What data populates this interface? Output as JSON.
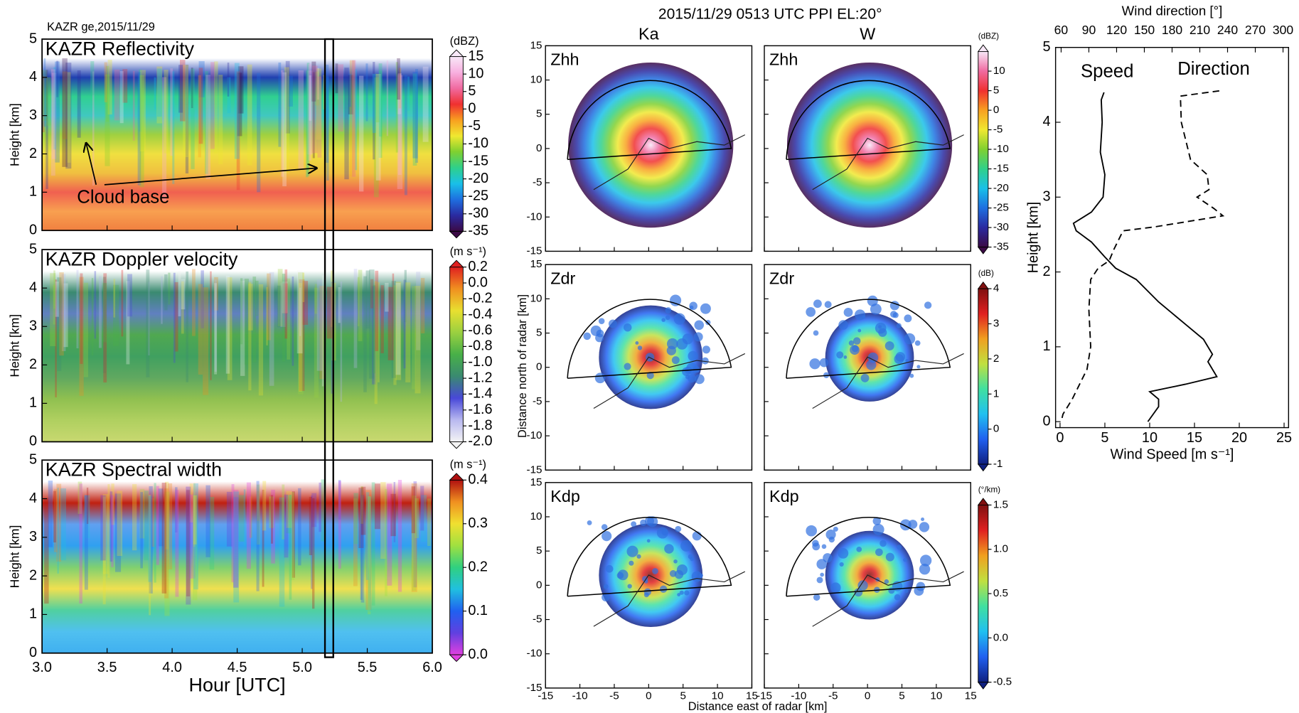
{
  "chart_data": [
    {
      "type": "heatmap",
      "header": "KAZR ge,2015/11/29",
      "title": "KAZR Reflectivity",
      "ylabel": "Height [km]",
      "xlim": [
        3,
        6
      ],
      "xticks": [
        {
          "value": 3,
          "label": "3.0"
        },
        3.5,
        {
          "value": 4,
          "label": "4.0"
        },
        4.5,
        {
          "value": 5,
          "label": "5.0"
        },
        5.5,
        {
          "value": 6,
          "label": "6.0"
        }
      ],
      "ylim": [
        0,
        5
      ],
      "yticks": [
        0,
        1,
        2,
        3,
        4,
        5
      ],
      "annotation": "Cloud base",
      "colorbar": {
        "label": "(dBZ)",
        "lim": [
          -35,
          15
        ],
        "ticks": [
          15,
          10,
          5,
          0,
          -5,
          -10,
          -15,
          -20,
          -25,
          -30,
          -35
        ],
        "colors": [
          "#3b0a45",
          "#2a2aa0",
          "#1e6fe0",
          "#19c0e8",
          "#2fd08a",
          "#7fd030",
          "#f0e830",
          "#f8a020",
          "#f03030",
          "#f06aa0",
          "#f8b0e0",
          "#f8e8f8"
        ]
      }
    },
    {
      "type": "heatmap",
      "title": "KAZR Doppler velocity",
      "ylabel": "Height [km]",
      "xlim": [
        3,
        6
      ],
      "xticks": [
        {
          "value": 3,
          "label": "3.0"
        },
        3.5,
        {
          "value": 4,
          "label": "4.0"
        },
        4.5,
        {
          "value": 5,
          "label": "5.0"
        },
        5.5,
        {
          "value": 6,
          "label": "6.0"
        }
      ],
      "ylim": [
        0,
        5
      ],
      "yticks": [
        0,
        1,
        2,
        3,
        4,
        5
      ],
      "colorbar": {
        "label": "(m s⁻¹)",
        "lim": [
          -2,
          0.2
        ],
        "ticks": [
          0.2,
          {
            "value": 0,
            "label": "0.0"
          },
          -0.2,
          -0.4,
          -0.6,
          -0.8,
          {
            "value": -1,
            "label": "-1.0"
          },
          -1.2,
          -1.4,
          -1.6,
          -1.8,
          {
            "value": -2,
            "label": "-2.0"
          }
        ],
        "colors": [
          "#f4f4f4",
          "#b8b8f0",
          "#4848d8",
          "#3a8a70",
          "#48b048",
          "#9ad040",
          "#e8e030",
          "#f09020",
          "#e02020"
        ]
      }
    },
    {
      "type": "heatmap",
      "title": "KAZR Spectral width",
      "ylabel": "Height [km]",
      "xlabel": "Hour [UTC]",
      "xlim": [
        3,
        6
      ],
      "xticks": [
        {
          "value": 3,
          "label": "3.0"
        },
        3.5,
        {
          "value": 4,
          "label": "4.0"
        },
        4.5,
        {
          "value": 5,
          "label": "5.0"
        },
        5.5,
        {
          "value": 6,
          "label": "6.0"
        }
      ],
      "ylim": [
        0,
        5
      ],
      "yticks": [
        0,
        1,
        2,
        3,
        4,
        5
      ],
      "colorbar": {
        "label": "(m s⁻¹)",
        "lim": [
          0,
          0.4
        ],
        "ticks": [
          0.4,
          0.3,
          0.2,
          0.1,
          {
            "value": 0,
            "label": "0.0"
          }
        ],
        "colors": [
          "#e040e0",
          "#6040e0",
          "#2060f0",
          "#20c0e0",
          "#30d080",
          "#a0e040",
          "#f0e030",
          "#f09020",
          "#b01010"
        ]
      }
    },
    {
      "type": "ppi",
      "title": "2015/11/29 0513 UTC  PPI EL:20°",
      "columns": [
        "Ka",
        "W"
      ],
      "xlabel": "Distance east of radar [km]",
      "ylabel": "Distance north of radar [km]",
      "xlim": [
        -15,
        15
      ],
      "ylim": [
        -15,
        15
      ],
      "xticks": [
        -15,
        -10,
        -5,
        0,
        5,
        10,
        15
      ],
      "yticks": [
        15,
        10,
        5,
        0,
        -5,
        -10,
        -15
      ],
      "rows": [
        {
          "label": "Zhh",
          "colorbar": {
            "label": "(dBZ)",
            "lim": [
              -35,
              15
            ],
            "ticks": [
              10,
              5,
              0,
              -5,
              -10,
              -15,
              -20,
              -25,
              -30,
              -35
            ],
            "colors": [
              "#3b0a45",
              "#2a2aa0",
              "#1e6fe0",
              "#19c0e8",
              "#2fd08a",
              "#7fd030",
              "#f0e830",
              "#f8a020",
              "#f03030",
              "#f06aa0",
              "#f8e8f8"
            ]
          }
        },
        {
          "label": "Zdr",
          "colorbar": {
            "label": "(dB)",
            "lim": [
              -1,
              4
            ],
            "ticks": [
              4,
              3,
              2,
              1,
              0,
              -1
            ],
            "colors": [
              "#102080",
              "#2060f0",
              "#20c0f0",
              "#40e0a0",
              "#c0e040",
              "#f0a020",
              "#e02020",
              "#801010"
            ]
          }
        },
        {
          "label": "Kdp",
          "colorbar": {
            "label": "(°/km)",
            "lim": [
              -0.5,
              1.5
            ],
            "ticks": [
              1.5,
              {
                "value": 1,
                "label": "1.0"
              },
              0.5,
              {
                "value": 0,
                "label": "0.0"
              },
              -0.5
            ],
            "colors": [
              "#102080",
              "#2060f0",
              "#20c0f0",
              "#40e0a0",
              "#c0e040",
              "#f0a020",
              "#e02020",
              "#801010"
            ]
          }
        }
      ]
    },
    {
      "type": "line",
      "xlabel": "Wind Speed [m s⁻¹]",
      "x2label": "Wind direction [°]",
      "ylabel": "Height [km]",
      "xlim": [
        -0.5,
        25.5
      ],
      "xticks": [
        0,
        5,
        10,
        15,
        20,
        25
      ],
      "x2lim": [
        54,
        306
      ],
      "x2ticks": [
        60,
        90,
        120,
        150,
        180,
        210,
        240,
        270,
        300
      ],
      "ylim": [
        -0.08,
        5
      ],
      "yticks": [
        0,
        1,
        2,
        3,
        4,
        5
      ],
      "series": [
        {
          "name": "Speed",
          "color": "#000000",
          "dashed": false,
          "x": [
            4.9,
            4.6,
            4.7,
            4.5,
            5.0,
            4.8,
            3.5,
            1.5,
            1.8,
            3.5,
            5.0,
            6.2,
            8.5,
            11,
            14,
            16,
            17,
            16.5,
            17.5,
            14,
            10,
            11,
            11,
            9.8
          ],
          "y": [
            4.4,
            4.3,
            4.0,
            3.6,
            3.3,
            3.0,
            2.8,
            2.65,
            2.55,
            2.4,
            2.2,
            2.05,
            1.9,
            1.6,
            1.3,
            1.1,
            0.9,
            0.8,
            0.6,
            0.5,
            0.4,
            0.3,
            0.2,
            0.0
          ]
        },
        {
          "name": "Direction",
          "color": "#000000",
          "dashed": true,
          "axis": "x2",
          "x": [
            231,
            189,
            190,
            200,
            218,
            220,
            207,
            225,
            235,
            160,
            127,
            117,
            112,
            100,
            92,
            90,
            92,
            88,
            72,
            62,
            60
          ],
          "y": [
            4.42,
            4.35,
            4.0,
            3.5,
            3.3,
            3.1,
            3.0,
            2.85,
            2.75,
            2.6,
            2.55,
            2.3,
            2.15,
            2.05,
            1.9,
            1.5,
            1.0,
            0.7,
            0.3,
            0.1,
            0.0
          ]
        }
      ]
    }
  ]
}
